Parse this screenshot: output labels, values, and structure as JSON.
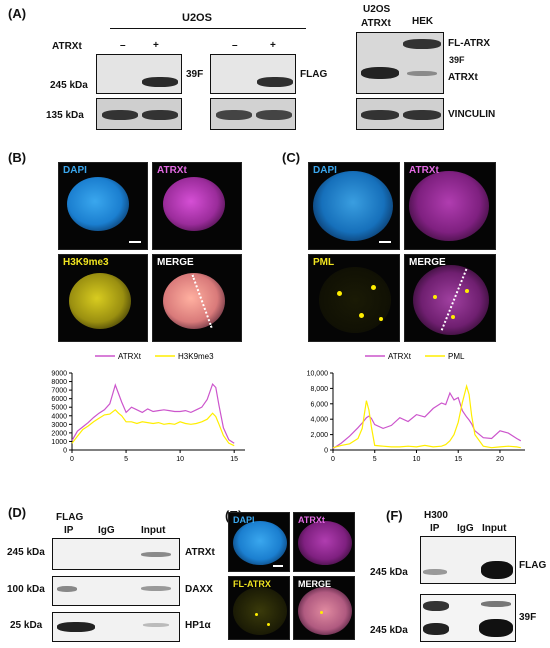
{
  "panel_a": {
    "letter": "(A)",
    "cell_line": "U2OS",
    "atrxt_label": "ATRXt",
    "lanes": [
      "–",
      "+",
      "–",
      "+"
    ],
    "mw_245": "245 kDa",
    "mw_135": "135 kDa",
    "ab_39f": "39F",
    "ab_flag": "FLAG",
    "right_col1_l1": "U2OS",
    "right_col1_l2": "ATRXt",
    "right_col2": "HEK",
    "fl_atrx": "FL-ATRX",
    "ab_39f_small": "39F",
    "atrxt_band": "ATRXt",
    "vinculin": "VINCULIN"
  },
  "panel_b": {
    "letter": "(B)",
    "tiles": [
      "DAPI",
      "ATRXt",
      "H3K9me3",
      "MERGE"
    ],
    "legend": [
      "ATRXt",
      "H3K9me3"
    ],
    "chart_data": {
      "type": "line",
      "x": [
        0,
        0.5,
        1,
        1.5,
        2,
        2.5,
        3,
        3.5,
        4,
        4.3,
        4.6,
        5,
        5.5,
        6,
        6.5,
        7,
        7.5,
        8,
        8.5,
        9,
        9.5,
        10,
        10.5,
        11,
        11.5,
        12,
        12.5,
        13,
        13.3,
        13.6,
        14,
        14.5,
        15
      ],
      "series": [
        {
          "name": "ATRXt",
          "color": "#cc55cc",
          "values": [
            1100,
            2200,
            2700,
            3200,
            3800,
            4300,
            4700,
            5400,
            7600,
            6600,
            5600,
            4400,
            5000,
            4700,
            4400,
            4800,
            4500,
            4600,
            4700,
            4600,
            4500,
            4500,
            4600,
            4400,
            4700,
            5000,
            5900,
            7700,
            7300,
            5200,
            2600,
            1200,
            800
          ]
        },
        {
          "name": "H3K9me3",
          "color": "#ffee00",
          "values": [
            800,
            1600,
            2400,
            2800,
            3300,
            3700,
            4100,
            4200,
            4700,
            4300,
            4000,
            3300,
            3300,
            3100,
            3300,
            3200,
            3100,
            3200,
            3000,
            3100,
            3000,
            3300,
            3100,
            3000,
            3100,
            3300,
            3600,
            4300,
            3900,
            3000,
            1700,
            800,
            500
          ]
        }
      ],
      "xticks": [
        0,
        5,
        10,
        15
      ],
      "yticks": [
        0,
        1000,
        2000,
        3000,
        4000,
        5000,
        6000,
        7000,
        8000,
        9000
      ],
      "xlim": [
        0,
        16
      ],
      "ylim": [
        0,
        9000
      ]
    }
  },
  "panel_c": {
    "letter": "(C)",
    "tiles": [
      "DAPI",
      "ATRXt",
      "PML",
      "MERGE"
    ],
    "legend": [
      "ATRXt",
      "PML"
    ],
    "chart_data": {
      "type": "line",
      "x": [
        0,
        1,
        2,
        3,
        3.5,
        4,
        4.3,
        4.6,
        5,
        6,
        7,
        8,
        9,
        10,
        11,
        12,
        13,
        13.5,
        14,
        14.5,
        15,
        15.5,
        16,
        16.3,
        16.6,
        17,
        18,
        19,
        20,
        21,
        22,
        22.5
      ],
      "series": [
        {
          "name": "ATRXt",
          "color": "#cc55cc",
          "values": [
            200,
            900,
            1800,
            2900,
            3500,
            4200,
            4400,
            4100,
            3300,
            2800,
            3200,
            4200,
            3700,
            4600,
            4300,
            5400,
            6100,
            5900,
            7400,
            6500,
            6800,
            5100,
            4300,
            3900,
            3400,
            2500,
            1600,
            1500,
            2500,
            2200,
            1500,
            1200
          ]
        },
        {
          "name": "PML",
          "color": "#ffee00",
          "values": [
            300,
            600,
            800,
            1500,
            2800,
            6400,
            5200,
            3000,
            600,
            500,
            400,
            400,
            500,
            400,
            600,
            400,
            500,
            700,
            1200,
            2000,
            3600,
            6200,
            8300,
            7200,
            4500,
            2000,
            500,
            300,
            400,
            500,
            400,
            300
          ]
        }
      ],
      "xticks": [
        0,
        5,
        10,
        15,
        20
      ],
      "yticks": [
        "0",
        "2,000",
        "4,000",
        "6,000",
        "8,000",
        "10,000"
      ],
      "xlim": [
        0,
        23
      ],
      "ylim": [
        0,
        10000
      ]
    }
  },
  "panel_d": {
    "letter": "(D)",
    "col_flag": "FLAG",
    "col_ip": "IP",
    "col_igg": "IgG",
    "col_input": "Input",
    "rows": [
      {
        "mw": "245 kDa",
        "ab": "ATRXt"
      },
      {
        "mw": "100 kDa",
        "ab": "DAXX"
      },
      {
        "mw": "25 kDa",
        "ab": "HP1α"
      }
    ]
  },
  "panel_e": {
    "letter": "(E)",
    "tiles": [
      "DAPI",
      "ATRXt",
      "FL-ATRX",
      "MERGE"
    ]
  },
  "panel_f": {
    "letter": "(F)",
    "col_h300": "H300",
    "col_ip": "IP",
    "col_igg": "IgG",
    "col_input": "Input",
    "rows": [
      {
        "mw": "245 kDa",
        "ab": "FLAG"
      },
      {
        "mw": "245 kDa",
        "ab": "39F"
      }
    ]
  }
}
